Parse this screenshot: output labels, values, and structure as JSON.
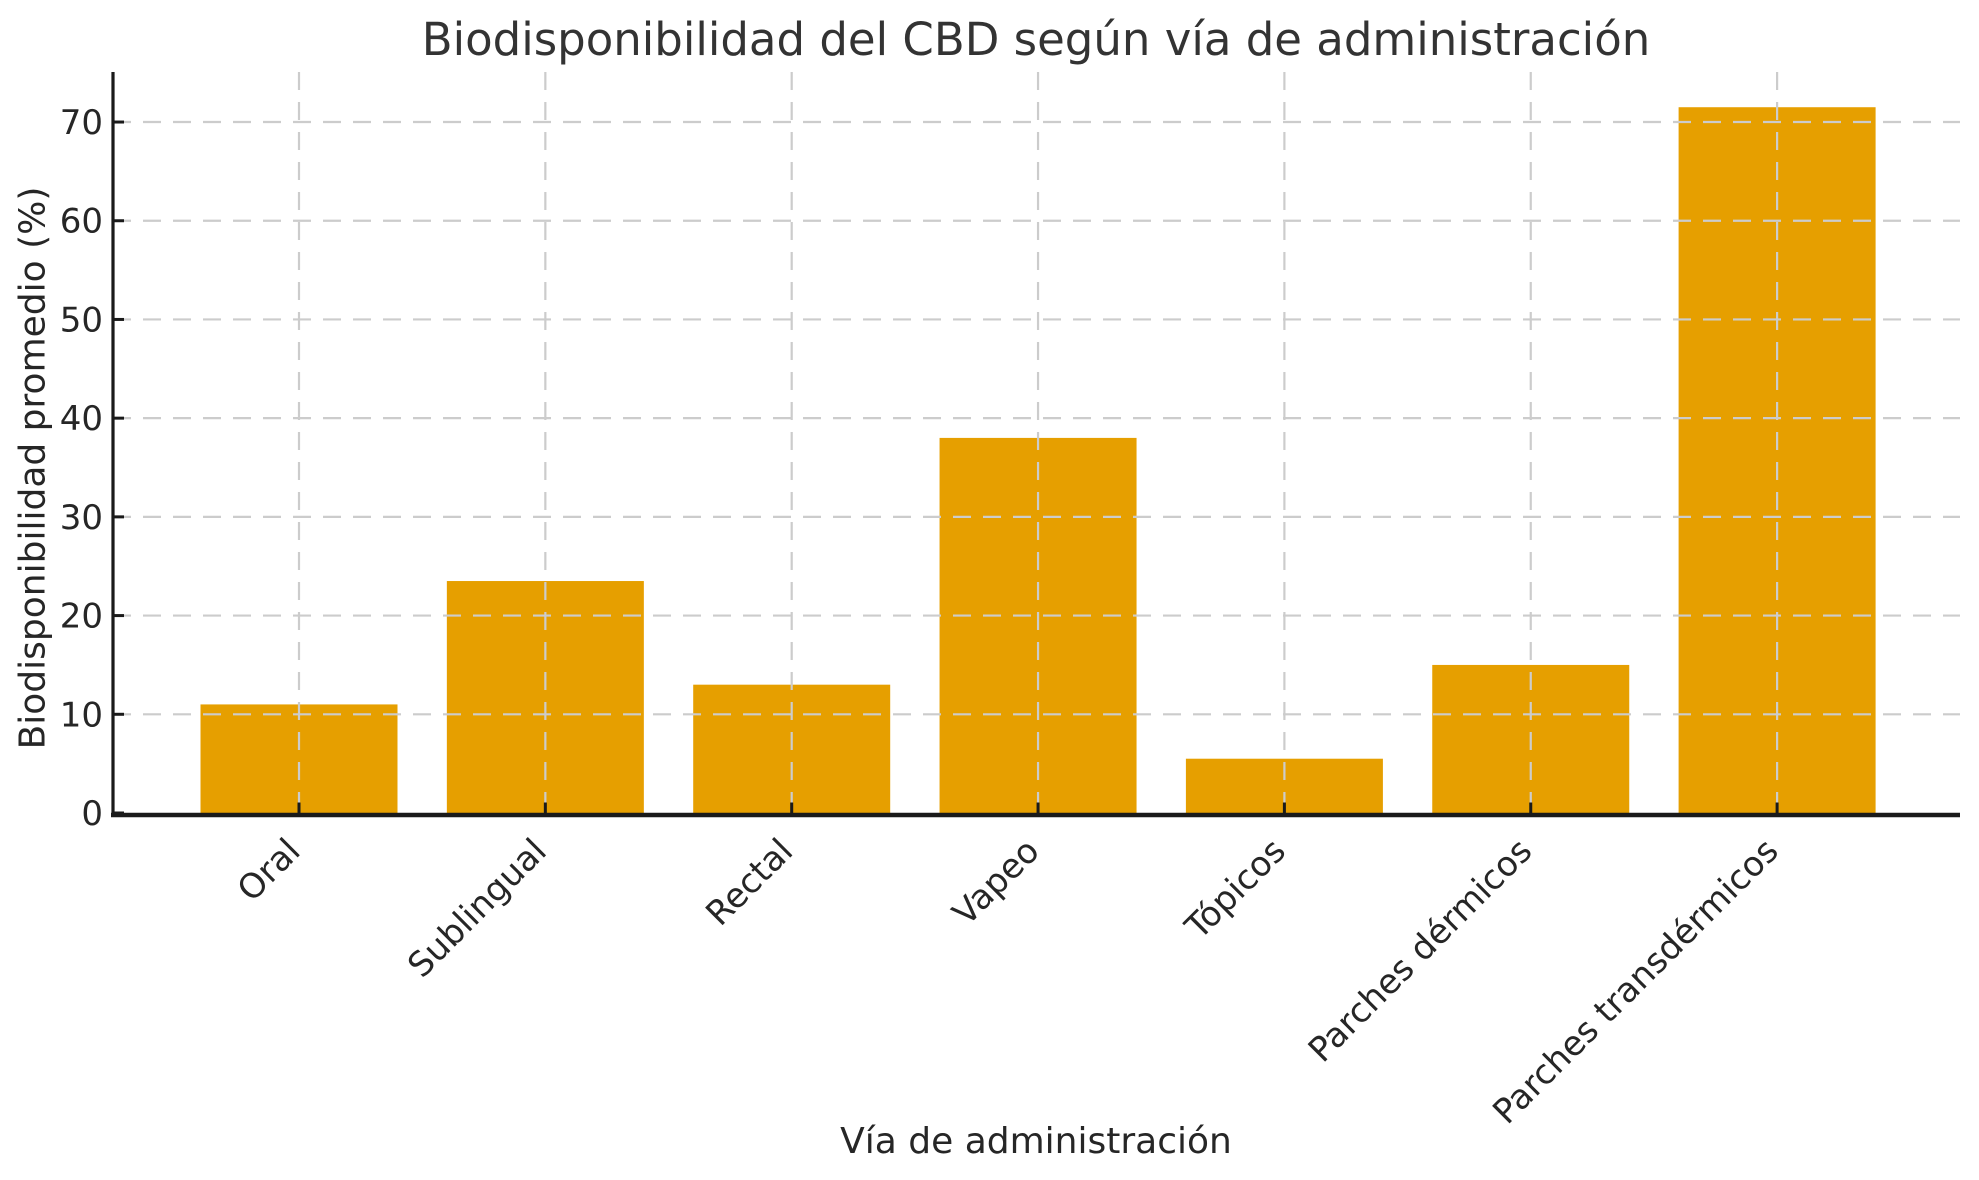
{
  "chart_data": {
    "type": "bar",
    "title": "Biodisponibilidad del CBD según vía de administración",
    "xlabel": "Vía de administración",
    "ylabel": "Biodisponibilidad promedio (%)",
    "categories": [
      "Oral",
      "Sublingual",
      "Rectal",
      "Vapeo",
      "Tópicos",
      "Parches dérmicos",
      "Parches transdérmicos"
    ],
    "values": [
      11,
      23.5,
      13,
      38,
      5.5,
      15,
      71.5
    ],
    "yticks": [
      0,
      10,
      20,
      30,
      40,
      50,
      60,
      70
    ],
    "ylim": [
      0,
      75
    ],
    "grid": true,
    "grid_style": "dashed",
    "legend": false,
    "x_tick_rotation": 45,
    "style": {
      "bar_color": "#E69F00",
      "grid_color": "#cccccc",
      "spine_color": "#1a1a1a",
      "tick_label_color": "#262626",
      "title_color": "#333333",
      "background": "#ffffff"
    }
  }
}
